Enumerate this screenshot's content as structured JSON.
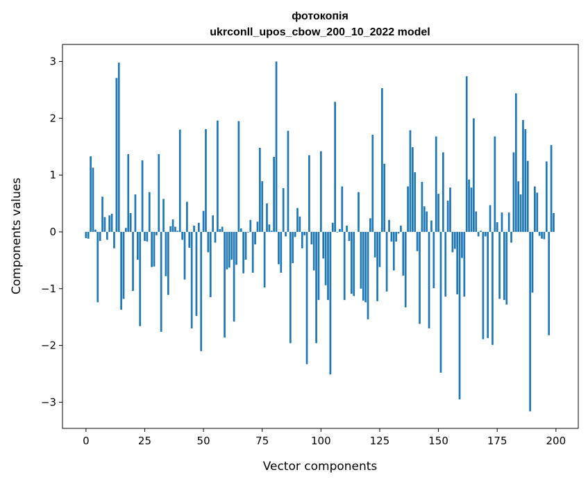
{
  "chart_data": {
    "type": "bar",
    "title_line1": "фотокопія",
    "title_line2": "ukrconll_upos_cbow_200_10_2022 model",
    "xlabel": "Vector components",
    "ylabel": "Components values",
    "xlim": [
      -10.0,
      209.5
    ],
    "ylim": [
      -3.46,
      3.3
    ],
    "xticks": [
      0,
      25,
      50,
      75,
      100,
      125,
      150,
      175,
      200
    ],
    "yticks": [
      -3,
      -2,
      -1,
      0,
      1,
      2,
      3
    ],
    "ytick_labels": [
      "−3",
      "−2",
      "−1",
      "0",
      "1",
      "2",
      "3"
    ],
    "grid": false,
    "bar_color": "#1f77b4",
    "values": [
      -0.11,
      -0.12,
      1.33,
      1.13,
      0.04,
      -1.24,
      -0.16,
      0.62,
      0.26,
      -0.14,
      0.29,
      0.32,
      -0.29,
      2.71,
      2.98,
      -1.37,
      -1.18,
      0.07,
      1.37,
      0.33,
      -1.04,
      0.66,
      -0.49,
      -1.66,
      1.26,
      -0.16,
      -0.17,
      0.7,
      -0.62,
      -0.61,
      -0.06,
      1.37,
      -1.76,
      0.58,
      -0.78,
      -1.11,
      0.1,
      0.22,
      0.09,
      0.02,
      1.8,
      -0.14,
      -0.84,
      0.53,
      -0.28,
      -1.7,
      0.11,
      -1.48,
      0.16,
      -2.1,
      0.37,
      1.81,
      -0.36,
      -1.15,
      0.29,
      -0.19,
      1.96,
      0.05,
      0.09,
      -1.86,
      -0.66,
      -0.63,
      -0.49,
      -1.58,
      -0.58,
      1.95,
      0.06,
      -0.73,
      -0.49,
      -0.01,
      0.21,
      -0.72,
      -0.22,
      0.18,
      1.48,
      0.89,
      -0.98,
      0.5,
      0.13,
      0.02,
      1.32,
      3.0,
      -0.57,
      -0.72,
      0.77,
      -0.08,
      1.78,
      -1.96,
      -0.55,
      -0.09,
      0.42,
      0.27,
      -0.29,
      -0.06,
      -2.33,
      1.35,
      -0.22,
      -0.68,
      -1.96,
      -1.2,
      1.42,
      -0.47,
      -0.94,
      -1.2,
      -2.51,
      0.16,
      2.29,
      -0.01,
      0.05,
      0.8,
      -1.2,
      0.11,
      -0.16,
      -1.09,
      -1.13,
      0.0,
      0.7,
      -1.0,
      -1.21,
      -1.24,
      -1.54,
      0.24,
      1.71,
      -0.45,
      -1.22,
      -0.62,
      2.53,
      1.2,
      -1.05,
      0.21,
      -0.17,
      -0.68,
      -0.17,
      -0.03,
      0.11,
      -0.77,
      -1.33,
      0.8,
      1.79,
      1.49,
      1.05,
      -0.34,
      -1.62,
      0.88,
      0.45,
      0.36,
      -1.7,
      0.2,
      -0.99,
      1.68,
      0.67,
      -2.48,
      1.4,
      -1.14,
      0.55,
      0.78,
      -0.36,
      -0.3,
      -1.1,
      -2.95,
      -0.46,
      -1.14,
      2.74,
      0.92,
      0.78,
      2.0,
      0.36,
      -0.08,
      0.02,
      -1.89,
      -0.08,
      -1.87,
      0.47,
      -1.99,
      1.68,
      0.17,
      -1.18,
      0.34,
      -1.2,
      -1.28,
      0.34,
      -0.19,
      1.4,
      2.44,
      0.89,
      0.66,
      1.97,
      1.81,
      1.25,
      -3.16,
      -1.07,
      0.8,
      0.69,
      -0.07,
      -0.12,
      -0.13,
      1.24,
      -1.82,
      1.53,
      0.33
    ]
  }
}
